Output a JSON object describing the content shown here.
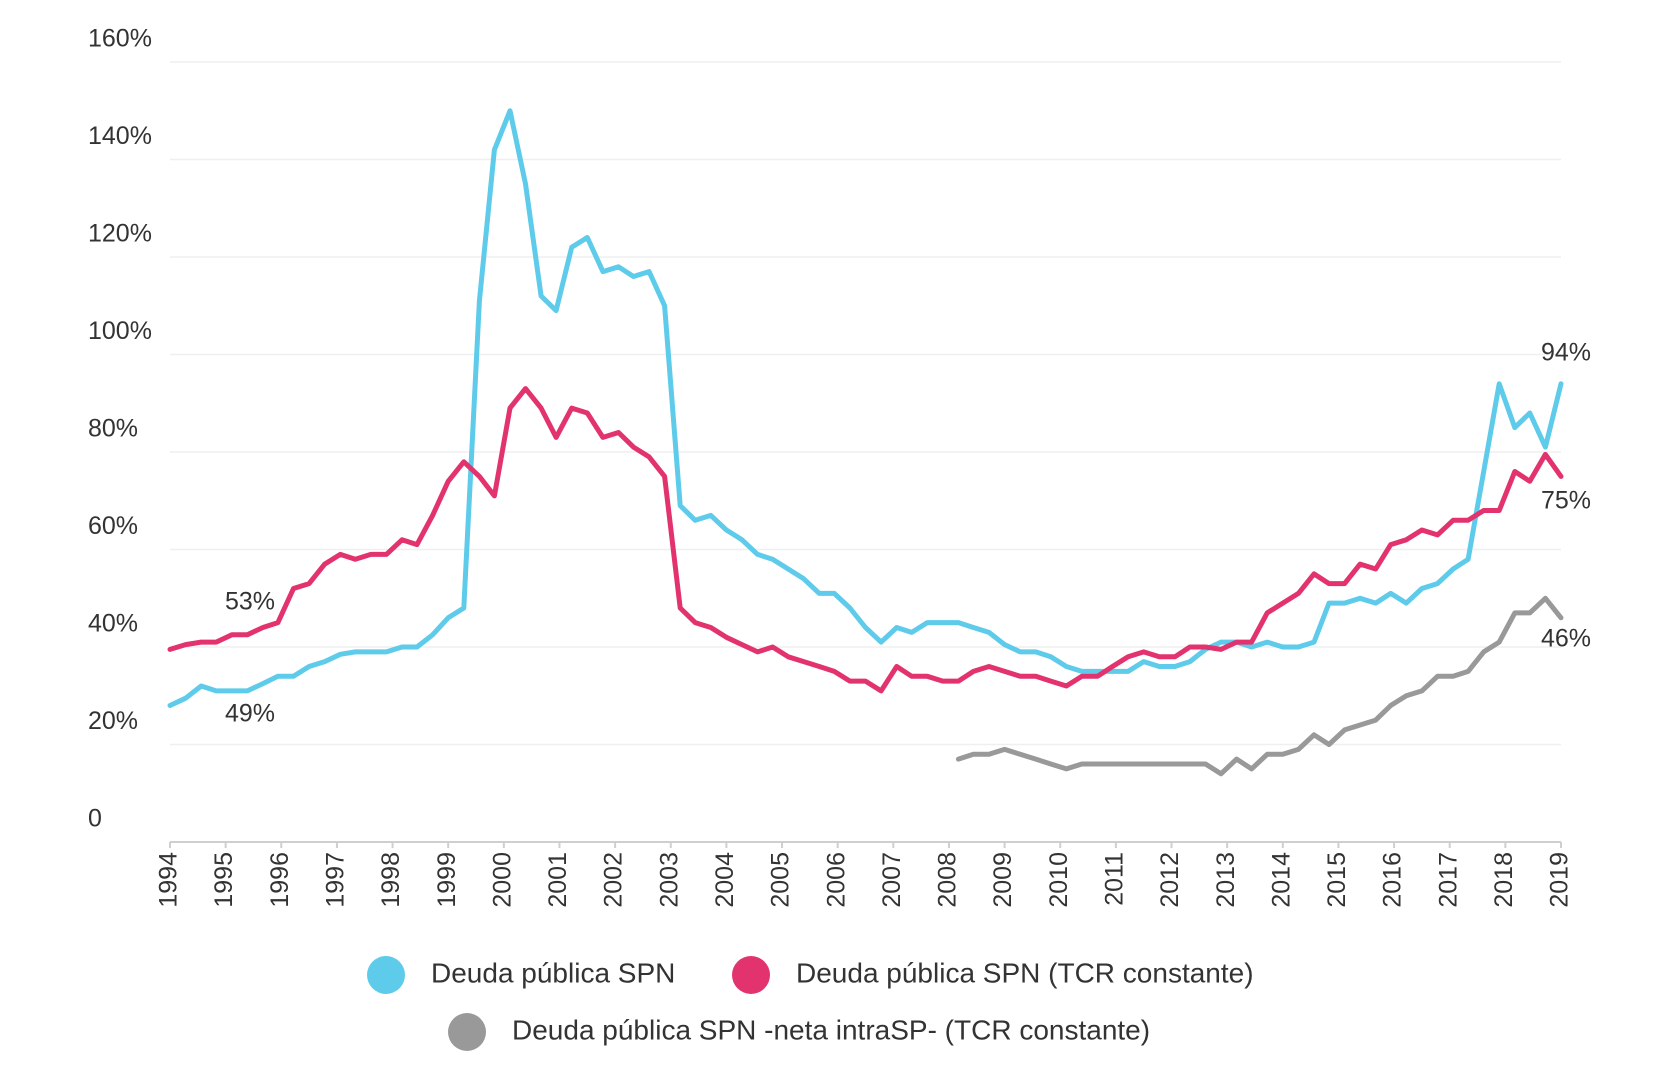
{
  "chart_data": {
    "type": "line",
    "x": [
      1994,
      1994.28,
      1994.56,
      1994.83,
      1995.11,
      1995.39,
      1995.67,
      1995.94,
      1996.22,
      1996.5,
      1996.78,
      1997.06,
      1997.33,
      1997.61,
      1997.89,
      1998.17,
      1998.44,
      1998.72,
      1999,
      1999.28,
      1999.56,
      1999.83,
      2000.11,
      2000.39,
      2000.67,
      2000.94,
      2001.22,
      2001.5,
      2001.78,
      2002.06,
      2002.33,
      2002.61,
      2002.89,
      2003.17,
      2003.44,
      2003.72,
      2004,
      2004.28,
      2004.56,
      2004.83,
      2005.11,
      2005.39,
      2005.67,
      2005.94,
      2006.22,
      2006.5,
      2006.78,
      2007.06,
      2007.33,
      2007.61,
      2007.89,
      2008.17,
      2008.44,
      2008.72,
      2009,
      2009.28,
      2009.56,
      2009.83,
      2010.11,
      2010.39,
      2010.67,
      2010.94,
      2011.22,
      2011.5,
      2011.78,
      2012.06,
      2012.33,
      2012.61,
      2012.89,
      2013.17,
      2013.44,
      2013.72,
      2014,
      2014.28,
      2014.56,
      2014.83,
      2015.11,
      2015.39,
      2015.67,
      2015.94,
      2016.22,
      2016.5,
      2016.78,
      2017.06,
      2017.33,
      2017.61,
      2017.89,
      2018.17,
      2018.44,
      2018.72,
      2019
    ],
    "series": [
      {
        "name": "Deuda pública SPN",
        "color": "#5ecbea",
        "values": [
          28,
          29.5,
          32,
          31,
          31,
          31,
          32.5,
          34,
          34,
          36,
          37,
          38.5,
          39,
          39,
          39,
          40,
          40,
          42.5,
          46,
          48,
          111,
          142,
          150,
          135,
          112,
          109,
          122,
          124,
          117,
          118,
          116,
          117,
          110,
          69,
          66,
          67,
          64,
          62,
          59,
          58,
          56,
          54,
          51,
          51,
          48,
          44,
          41,
          44,
          43,
          45,
          45,
          45,
          44,
          43,
          40.5,
          39,
          39,
          38,
          36,
          35,
          35,
          35,
          35,
          37,
          36,
          36,
          37,
          39.5,
          41,
          41,
          40,
          41,
          40,
          40,
          41,
          49,
          49,
          50,
          49,
          51,
          49,
          52,
          53,
          56,
          58,
          76,
          94,
          85,
          88,
          81,
          94
        ]
      },
      {
        "name": "Deuda pública SPN (TCR constante)",
        "color": "#e2336f",
        "values": [
          39.5,
          40.5,
          41,
          41,
          42.5,
          42.5,
          44,
          45,
          52,
          53,
          57,
          59,
          58,
          59,
          59,
          62,
          61,
          67,
          74,
          78,
          75,
          71,
          89,
          93,
          89,
          83,
          89,
          88,
          83,
          84,
          81,
          79,
          75,
          48,
          45,
          44,
          42,
          40.5,
          39,
          40,
          38,
          37,
          36,
          35,
          33,
          33,
          31,
          36,
          34,
          34,
          33,
          33,
          35,
          36,
          35,
          34,
          34,
          33,
          32,
          34,
          34,
          36,
          38,
          39,
          38,
          38,
          40,
          40,
          39.5,
          41,
          41,
          47,
          49,
          51,
          55,
          53,
          53,
          57,
          56,
          61,
          62,
          64,
          63,
          66,
          66,
          68,
          68,
          76,
          74,
          79.5,
          75
        ]
      },
      {
        "name": "Deuda pública SPN -neta intraSP- (TCR constante)",
        "color": "#999999",
        "values": [
          null,
          null,
          null,
          null,
          null,
          null,
          null,
          null,
          null,
          null,
          null,
          null,
          null,
          null,
          null,
          null,
          null,
          null,
          null,
          null,
          null,
          null,
          null,
          null,
          null,
          null,
          null,
          null,
          null,
          null,
          null,
          null,
          null,
          null,
          null,
          null,
          null,
          null,
          null,
          null,
          null,
          null,
          null,
          null,
          null,
          null,
          null,
          null,
          null,
          null,
          null,
          17,
          18,
          18,
          19,
          18,
          17,
          16,
          15,
          16,
          16,
          16,
          16,
          16,
          16,
          16,
          16,
          16,
          14,
          17,
          15,
          18,
          18,
          19,
          22,
          20,
          23,
          24,
          25,
          28,
          30,
          31,
          34,
          34,
          35,
          39,
          41,
          47,
          47,
          50,
          46
        ]
      }
    ],
    "xlim": [
      1994,
      2019
    ],
    "xticks": [
      1994,
      1995,
      1996,
      1997,
      1998,
      1999,
      2000,
      2001,
      2002,
      2003,
      2004,
      2005,
      2006,
      2007,
      2008,
      2009,
      2010,
      2011,
      2012,
      2013,
      2014,
      2015,
      2016,
      2017,
      2018,
      2019
    ],
    "ylim": [
      0,
      160
    ],
    "yticks": [
      0,
      {
        "value": 20,
        "label": "20%"
      },
      {
        "value": 40,
        "label": "40%"
      },
      {
        "value": 60,
        "label": "60%"
      },
      {
        "value": 80,
        "label": "80%"
      },
      {
        "value": 100,
        "label": "100%"
      },
      {
        "value": 120,
        "label": "120%"
      },
      {
        "value": 140,
        "label": "140%"
      },
      {
        "value": 160,
        "label": "160%"
      }
    ],
    "annotations": [
      "53%",
      "49%",
      "94%",
      "75%",
      "46%"
    ],
    "grid": true,
    "legend": "bottom"
  }
}
